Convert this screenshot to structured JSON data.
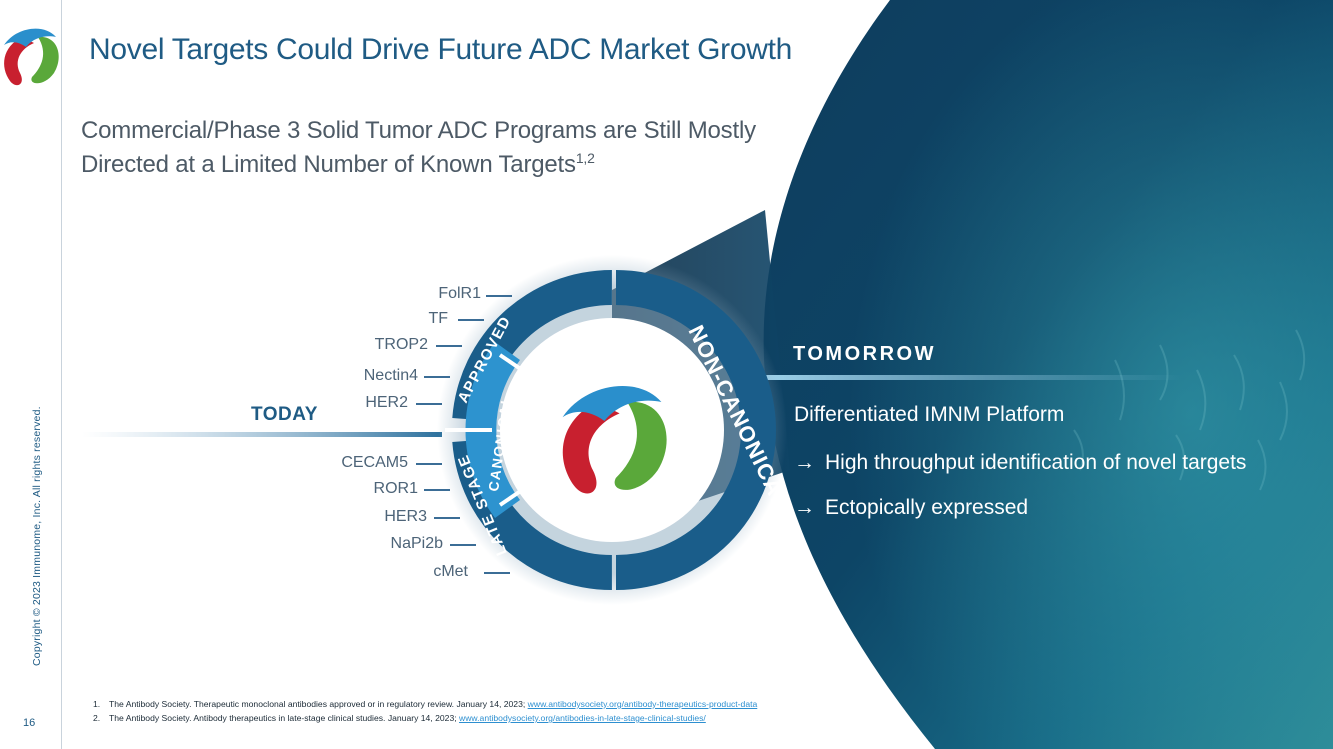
{
  "slide": {
    "title": "Novel Targets Could Drive Future ADC Market Growth",
    "subtitle_line1": "Commercial/Phase 3 Solid Tumor ADC Programs are Still Mostly",
    "subtitle_line2": "Directed at a Limited Number of Known Targets",
    "subtitle_sup": "1,2",
    "copyright": "Copyright © 2023 Immunome, Inc. All rights reserved.",
    "page_number": "16"
  },
  "diagram": {
    "today_label": "TODAY",
    "tomorrow_label": "TOMORROW",
    "ring_labels": {
      "approved": "APPROVED",
      "late_stage": "LATE STAGE",
      "canonical": "CANONICAL",
      "non_canonical": "NON-CANONICAL"
    },
    "approved_targets": [
      "FolR1",
      "TF",
      "TROP2",
      "Nectin4",
      "HER2"
    ],
    "late_stage_targets": [
      "CECAM5",
      "ROR1",
      "HER3",
      "NaPi2b",
      "cMet"
    ]
  },
  "tomorrow": {
    "heading": "Differentiated IMNM Platform",
    "arrow": "→",
    "bullets": [
      "High throughput identification of novel targets",
      "Ectopically expressed"
    ]
  },
  "footnotes": [
    {
      "num": "1.",
      "text": "The Antibody Society. Therapeutic monoclonal antibodies approved or in regulatory review. January 14, 2023; ",
      "link": "www.antibodysociety.org/antibody-therapeutics-product-data"
    },
    {
      "num": "2.",
      "text": "The Antibody Society. Antibody therapeutics in late-stage clinical studies. January 14, 2023; ",
      "link": "www.antibodysociety.org/antibodies-in-late-stage-clinical-studies/"
    }
  ],
  "colors": {
    "brand_blue": "#1f5b84",
    "ring_dark": "#1a5d8a",
    "ring_light": "#2d93cf",
    "logo_red": "#c8202f",
    "logo_green": "#5aa83a",
    "logo_blue": "#2a8fcc"
  }
}
